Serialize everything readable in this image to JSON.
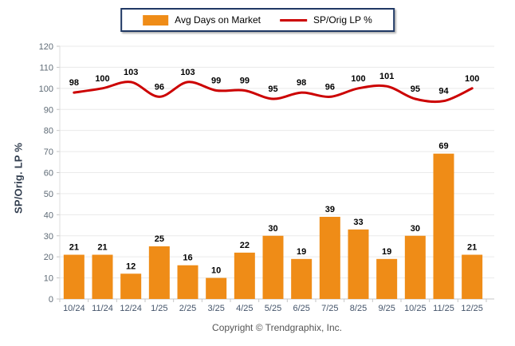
{
  "chart_data": {
    "type": "bar+line",
    "title": "",
    "categories": [
      "10/24",
      "11/24",
      "12/24",
      "1/25",
      "2/25",
      "3/25",
      "4/25",
      "5/25",
      "6/25",
      "7/25",
      "8/25",
      "9/25",
      "10/25",
      "11/25",
      "12/25"
    ],
    "series": [
      {
        "name": "Avg Days on Market",
        "type": "bar",
        "color": "#EF8C17",
        "values": [
          21,
          21,
          12,
          25,
          16,
          10,
          22,
          30,
          19,
          39,
          33,
          19,
          30,
          69,
          21
        ]
      },
      {
        "name": "SP/Orig LP %",
        "type": "line",
        "color": "#CC0000",
        "values": [
          98,
          100,
          103,
          96,
          103,
          99,
          99,
          95,
          98,
          96,
          100,
          101,
          95,
          94,
          100
        ]
      }
    ],
    "xlabel": "",
    "ylabel": "SP/Orig. LP %",
    "ylim": [
      0,
      120
    ],
    "ytick_step": 10,
    "grid": "horizontal",
    "legend_position": "top-center",
    "colors": {
      "grid": "#EAEAEA",
      "axis": "#C6C6C6",
      "x_tick_label": "#44546A",
      "y_tick_label": "#5F6B76",
      "data_label": "#000000",
      "legend_border": "#1F3864"
    }
  },
  "footer": {
    "copyright": "Copyright © Trendgraphix, Inc."
  }
}
